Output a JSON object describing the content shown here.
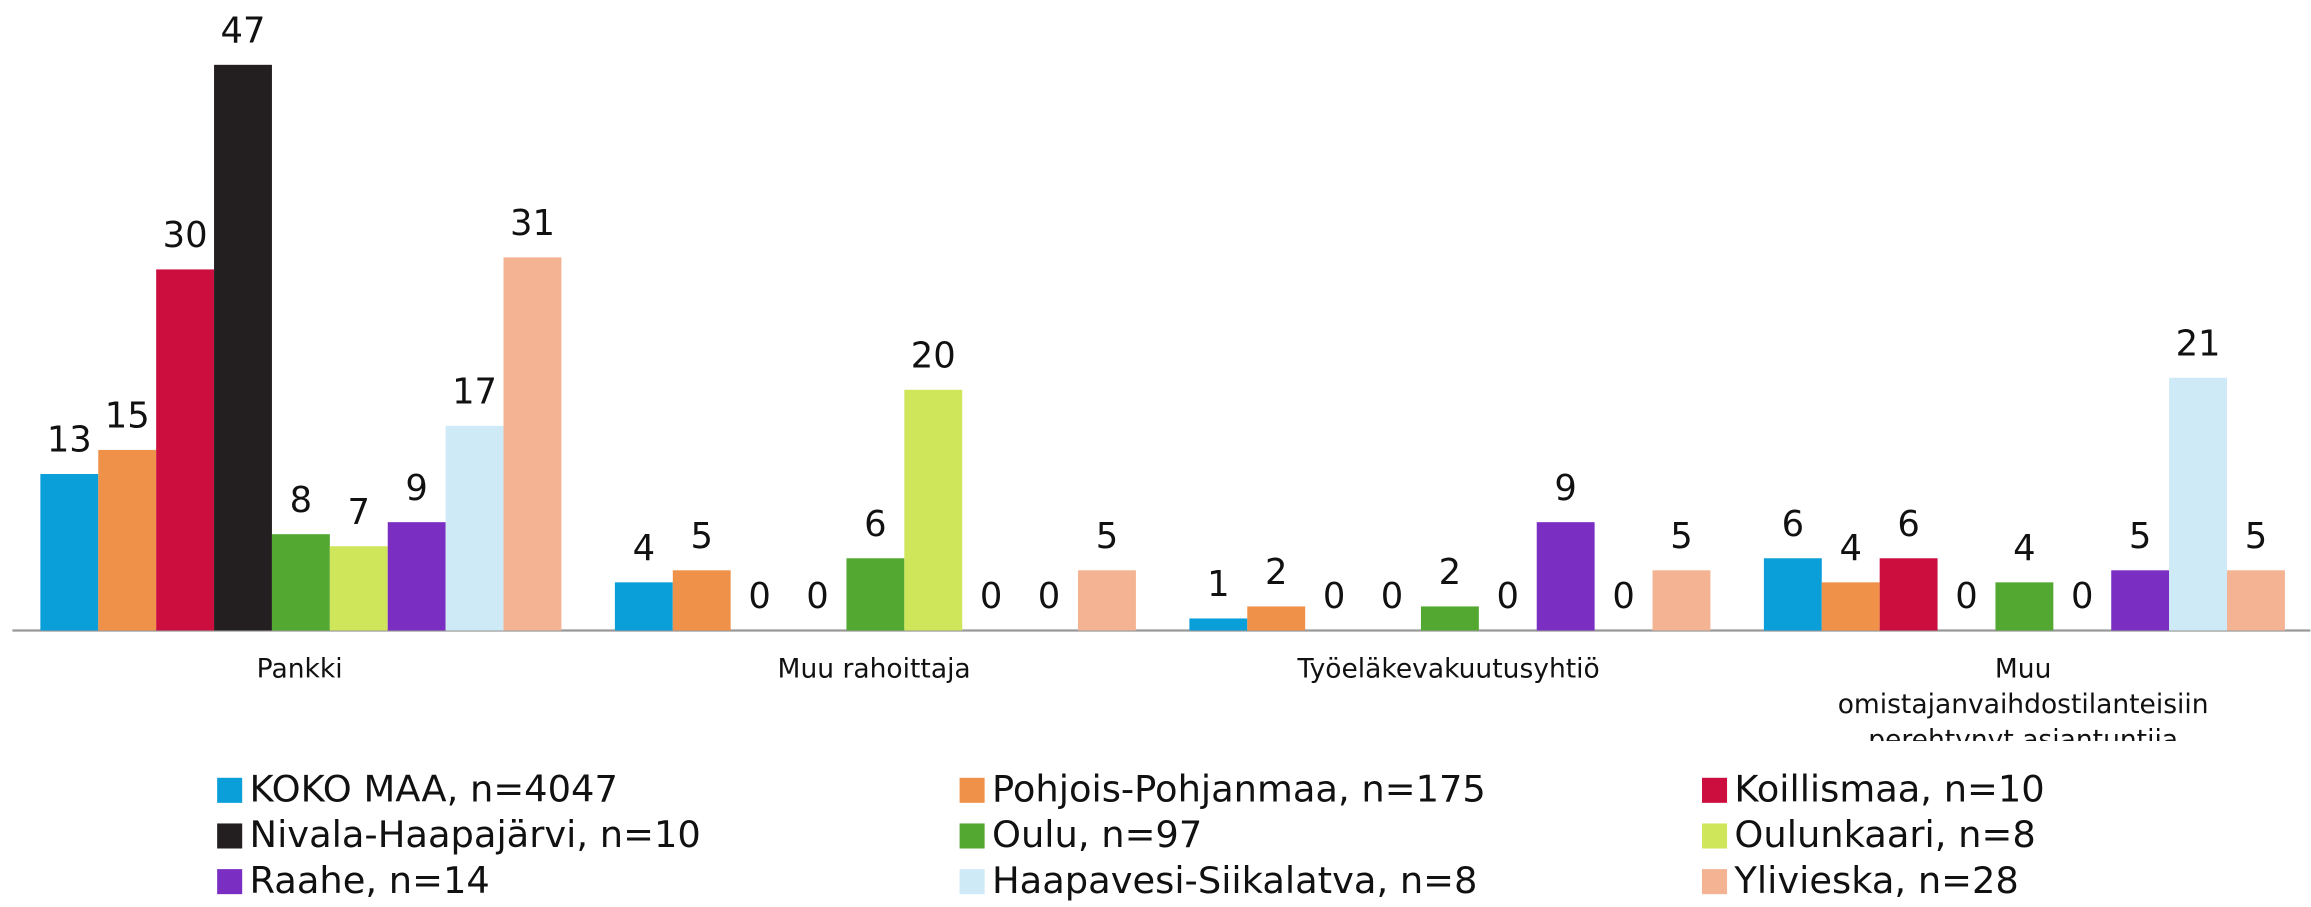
{
  "chart_data": {
    "type": "bar",
    "categories": [
      "Pankki",
      "Muu rahoittaja",
      "Työeläkevakuutusyhtiö",
      "Muu omistajanvaihdostilanteisiin perehtynyt asiantuntija"
    ],
    "ylim": [
      0,
      47
    ],
    "series": [
      {
        "name": "KOKO MAA, n=4047",
        "color": "#0a9fd8",
        "values": [
          13,
          4,
          1,
          6
        ]
      },
      {
        "name": "Pohjois-Pohjanmaa, n=175",
        "color": "#f0914a",
        "values": [
          15,
          5,
          2,
          4
        ]
      },
      {
        "name": "Koillismaa, n=10",
        "color": "#cc0e3f",
        "values": [
          30,
          0,
          0,
          6
        ]
      },
      {
        "name": "Nivala-Haapajärvi, n=10",
        "color": "#231f20",
        "values": [
          47,
          0,
          0,
          0
        ]
      },
      {
        "name": "Oulu, n=97",
        "color": "#53a832",
        "values": [
          8,
          6,
          2,
          4
        ]
      },
      {
        "name": "Oulunkaari, n=8",
        "color": "#cfe65a",
        "values": [
          7,
          20,
          0,
          0
        ]
      },
      {
        "name": "Raahe, n=14",
        "color": "#7b2fc2",
        "values": [
          9,
          0,
          9,
          5
        ]
      },
      {
        "name": "Haapavesi-Siikalatva, n=8",
        "color": "#cfeaf7",
        "values": [
          17,
          0,
          0,
          21
        ]
      },
      {
        "name": "Ylivieska, n=28",
        "color": "#f4b393",
        "values": [
          31,
          5,
          5,
          5
        ]
      }
    ]
  }
}
